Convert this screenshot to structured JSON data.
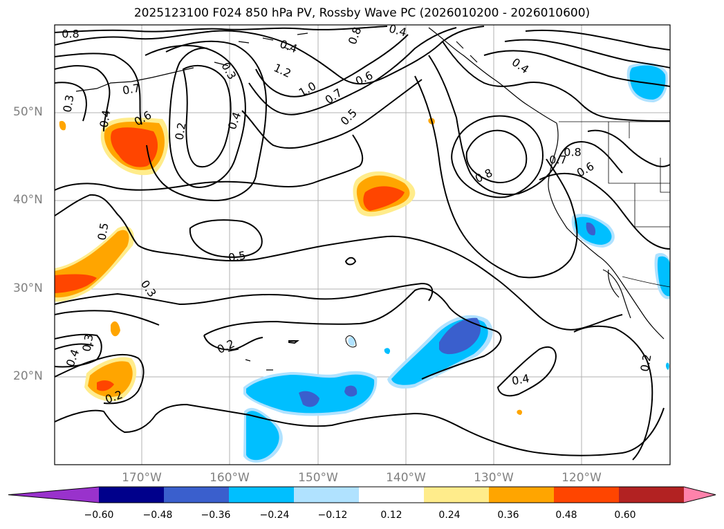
{
  "title": "2025123100 F024 850 hPa PV, Rossby Wave PC (2026010200 - 2026010600)",
  "lat_labels": [
    "50°N",
    "40°N",
    "30°N",
    "20°N"
  ],
  "lon_labels": [
    "170°W",
    "160°W",
    "150°W",
    "140°W",
    "130°W",
    "120°W"
  ],
  "contour_labels": [
    "0.8",
    "0.4",
    "1.2",
    "0.8",
    "0.4",
    "0.7",
    "0.3",
    "0.3",
    "1.0",
    "0.7",
    "0.6",
    "0.4",
    "0.6",
    "0.4",
    "0.2",
    "0.4",
    "0.5",
    "0.8",
    "0.7",
    "0.6",
    "0.8",
    "0.5",
    "0.5",
    "0.3",
    "0.2",
    "0.3",
    "0.4",
    "0.2",
    "0.4",
    "0.2"
  ],
  "colorbar": {
    "ticks": [
      "−0.60",
      "−0.48",
      "−0.36",
      "−0.24",
      "−0.12",
      "0.12",
      "0.24",
      "0.36",
      "0.48",
      "0.60"
    ],
    "colors": [
      "#9932cc",
      "#00008b",
      "#3a5fcd",
      "#00bfff",
      "#b0e2ff",
      "#ffffff",
      "#ffec8b",
      "#ffa500",
      "#ff4500",
      "#b22222",
      "#ff82ab"
    ]
  }
}
